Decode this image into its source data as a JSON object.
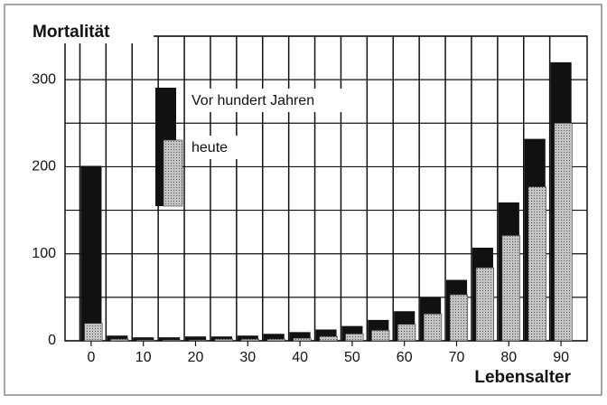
{
  "chart_data": {
    "type": "bar",
    "ylabel": "Mortalität",
    "xlabel": "Lebensalter",
    "x": [
      0,
      5,
      10,
      15,
      20,
      25,
      30,
      35,
      40,
      45,
      50,
      55,
      60,
      65,
      70,
      75,
      80,
      85,
      90
    ],
    "series": [
      {
        "name": "Vor hundert Jahren",
        "color": "#111111",
        "values": [
          201,
          6,
          4,
          4,
          5,
          5,
          6,
          8,
          10,
          13,
          17,
          24,
          34,
          50,
          70,
          107,
          159,
          232,
          320
        ]
      },
      {
        "name": "heute",
        "color": "#c4c4c4",
        "values": [
          20,
          2,
          1,
          1,
          1,
          2,
          2,
          2,
          3,
          5,
          8,
          12,
          19,
          31,
          53,
          84,
          121,
          177,
          250
        ]
      }
    ],
    "xlim": [
      -5,
      95
    ],
    "xticks": [
      0,
      10,
      20,
      30,
      40,
      50,
      60,
      70,
      80,
      90
    ],
    "ylim": [
      0,
      350
    ],
    "yticks": [
      0,
      100,
      200,
      300
    ],
    "grid": true
  }
}
